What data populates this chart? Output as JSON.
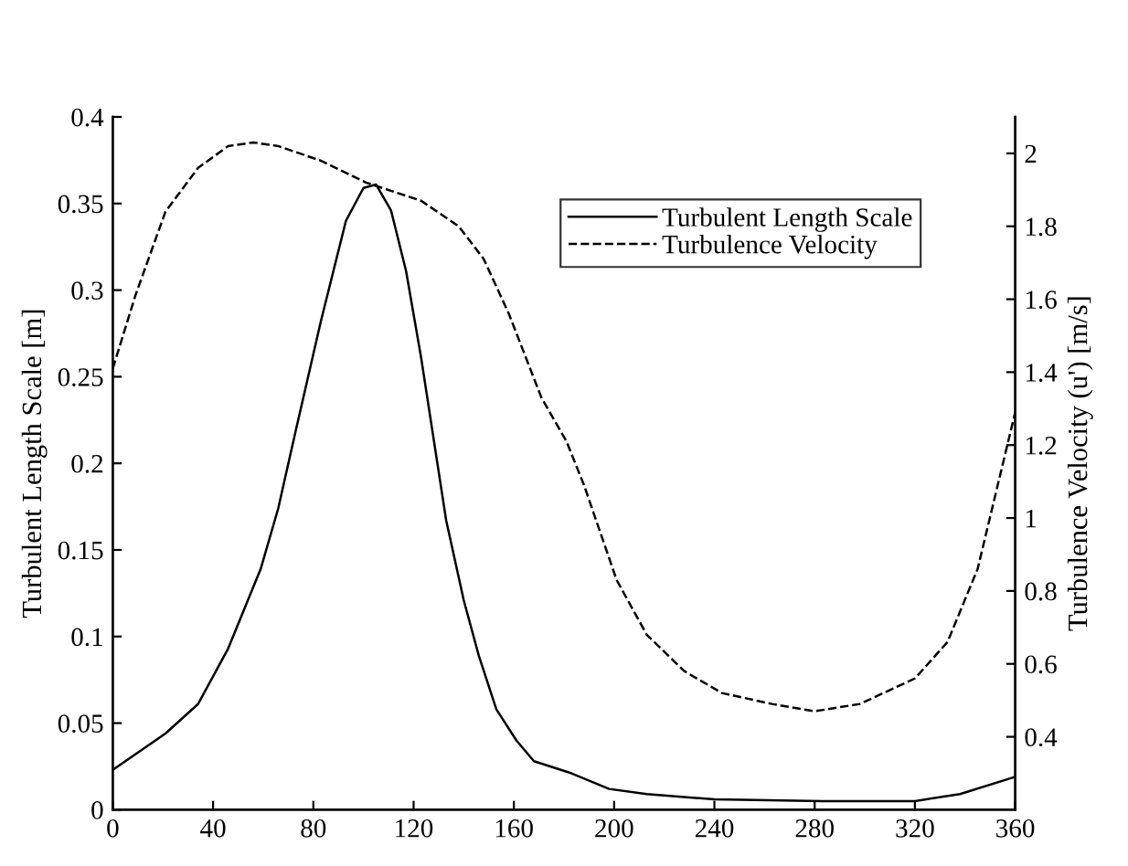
{
  "chart_data": {
    "type": "line",
    "ylabel": "Turbulent Length Scale [m]",
    "y2label": "Turbulence Velocity (u') [m/s]",
    "xlim": [
      0,
      360
    ],
    "xticks": [
      0,
      40,
      80,
      120,
      160,
      200,
      240,
      280,
      320,
      360
    ],
    "ylim": [
      0,
      0.4
    ],
    "yticks": [
      0,
      0.05,
      0.1,
      0.15,
      0.2,
      0.25,
      0.3,
      0.35,
      0.4
    ],
    "y2lim": [
      0.2,
      2.1
    ],
    "y2ticks": [
      0.4,
      0.6,
      0.8,
      1,
      1.2,
      1.4,
      1.6,
      1.8,
      2
    ],
    "grid": false,
    "legend": "top right",
    "series": [
      {
        "name": "Turbulent Length Scale",
        "color": "#000000",
        "line_style": "solid",
        "x": [
          0,
          21,
          34,
          46,
          59,
          66,
          73,
          83,
          93,
          100,
          105,
          111,
          117,
          123,
          133,
          140,
          146,
          153,
          161,
          168,
          183,
          198,
          213,
          240,
          283,
          320,
          338,
          360
        ],
        "values": [
          0.023,
          0.044,
          0.061,
          0.093,
          0.139,
          0.174,
          0.219,
          0.282,
          0.34,
          0.359,
          0.361,
          0.346,
          0.311,
          0.261,
          0.167,
          0.121,
          0.089,
          0.058,
          0.04,
          0.028,
          0.021,
          0.012,
          0.009,
          0.006,
          0.005,
          0.005,
          0.009,
          0.019
        ]
      },
      {
        "name": "Turbulence Velocity",
        "color": "#000000",
        "line_style": "dashed",
        "axis": "y2",
        "x": [
          0,
          9,
          21,
          34,
          46,
          56,
          66,
          83,
          101,
          123,
          138,
          148,
          158,
          171,
          181,
          188,
          201,
          213,
          228,
          243,
          263,
          280,
          298,
          320,
          333,
          345,
          360
        ],
        "values": [
          1.41,
          1.61,
          1.84,
          1.96,
          2.02,
          2.03,
          2.02,
          1.98,
          1.92,
          1.87,
          1.8,
          1.71,
          1.56,
          1.33,
          1.21,
          1.09,
          0.83,
          0.68,
          0.58,
          0.52,
          0.49,
          0.47,
          0.49,
          0.56,
          0.66,
          0.86,
          1.29
        ]
      }
    ]
  }
}
